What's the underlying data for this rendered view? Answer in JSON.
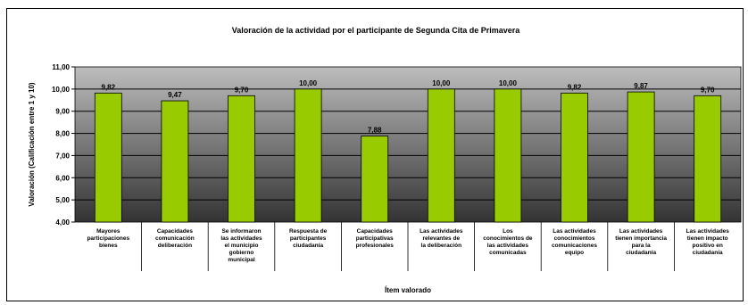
{
  "chart_data": {
    "type": "bar",
    "title": "Valoración de la actividad por el participante de Segunda Cita de Primavera",
    "xlabel": "Ítem valorado",
    "ylabel": "Valoración (Calificación entre 1 y 10)",
    "ylim": [
      4,
      11
    ],
    "yticks": [
      "4,00",
      "5,00",
      "6,00",
      "7,00",
      "8,00",
      "9,00",
      "10,00",
      "11,00"
    ],
    "categories": [
      [
        "Mayores",
        "participaciones",
        "bienes"
      ],
      [
        "Capacidades",
        "comunicación",
        "deliberación"
      ],
      [
        "Se informaron",
        "las actividades",
        "el municipio",
        "gobierno",
        "municipal"
      ],
      [
        "Respuesta de",
        "participantes",
        "ciudadanía"
      ],
      [
        "Capacidades",
        "participativas",
        "profesionales"
      ],
      [
        "Las actividades",
        "relevantes de",
        "la deliberación"
      ],
      [
        "Los",
        "conocimientos de",
        "las actividades",
        "comunicadas"
      ],
      [
        "Las actividades",
        "conocimientos",
        "comunicaciones",
        "equipo"
      ],
      [
        "Las actividades",
        "tienen importancia",
        "para la",
        "ciudadanía"
      ],
      [
        "Las actividades",
        "tienen impacto",
        "positivo en",
        "ciudadanía"
      ]
    ],
    "values": [
      9.82,
      9.47,
      9.7,
      10.0,
      7.88,
      10.0,
      10.0,
      9.82,
      9.87,
      9.7
    ],
    "value_labels": [
      "9,82",
      "9,47",
      "9,70",
      "10,00",
      "7,88",
      "10,00",
      "10,00",
      "9,82",
      "9,87",
      "9,70"
    ],
    "bar_color": "#99cc00",
    "plot_background": "gradient-gray",
    "grid": true,
    "legend": "none"
  }
}
